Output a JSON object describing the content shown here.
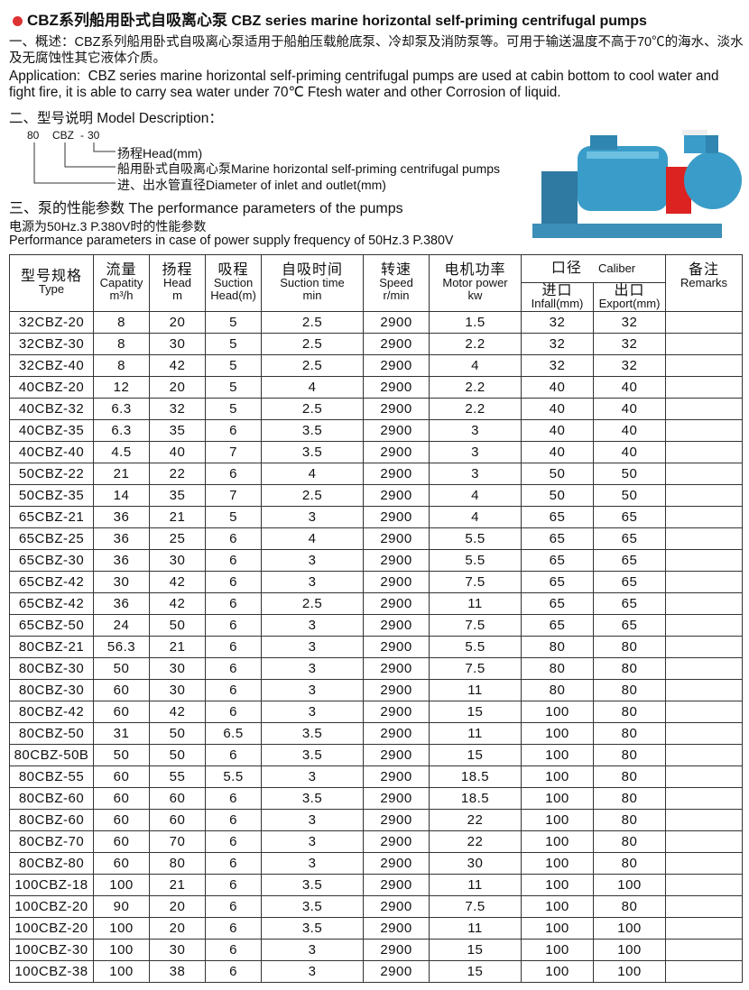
{
  "header": {
    "title_cn": "CBZ系列船用卧式自吸离心泵",
    "title_en": "CBZ series marine horizontal self-priming centrifugal pumps"
  },
  "overview": {
    "heading": "一、概述：",
    "text": "CBZ系列船用卧式自吸离心泵适用于船舶压载舱底泵、冷却泵及消防泵等。可用于输送温度不高于70℃的海水、淡水及无腐蚀性其它液体介质。",
    "app_label": "Application:",
    "app_text": "CBZ series marine horizontal self-priming centrifugal pumps are used at cabin bottom to cool water and fight fire, it is able to carry sea water under 70℃ Ftesh water and other Corrosion of liquid."
  },
  "model": {
    "heading": "二、型号说明 Model Description：",
    "code": {
      "diameter": "80",
      "series": "CBZ",
      "dash": "-",
      "head": "30"
    },
    "labels": [
      "扬程Head(mm)",
      "船用卧式自吸离心泵Marine horizontal self-priming centrifugal pumps",
      "进、出水管直径Diameter of inlet and outlet(mm)"
    ]
  },
  "performance": {
    "heading": "三、泵的性能参数 The performance parameters of the pumps",
    "note_cn": "电源为50Hz.3 P.380V时的性能参数",
    "note_en": "Performance parameters in case of power supply frequency of 50Hz.3 P.380V"
  },
  "table": {
    "headers": {
      "type": [
        "型号规格",
        "Type"
      ],
      "capacity": [
        "流量",
        "Capatity",
        "m³/h"
      ],
      "head": [
        "扬程",
        "Head",
        "m"
      ],
      "suction": [
        "吸程",
        "Suction",
        "Head(m)"
      ],
      "suction_time": [
        "自吸时间",
        "Suction time",
        "min"
      ],
      "speed": [
        "转速",
        "Speed",
        "r/min"
      ],
      "motor": [
        "电机功率",
        "Motor power",
        "kw"
      ],
      "caliber": [
        "口径",
        "Caliber"
      ],
      "infall": [
        "进口",
        "Infall(mm)"
      ],
      "export": [
        "出口",
        "Export(mm)"
      ],
      "remarks": [
        "备注",
        "Remarks"
      ]
    },
    "rows": [
      [
        "32CBZ-20",
        "8",
        "20",
        "5",
        "2.5",
        "2900",
        "1.5",
        "32",
        "32"
      ],
      [
        "32CBZ-30",
        "8",
        "30",
        "5",
        "2.5",
        "2900",
        "2.2",
        "32",
        "32"
      ],
      [
        "32CBZ-40",
        "8",
        "42",
        "5",
        "2.5",
        "2900",
        "4",
        "32",
        "32"
      ],
      [
        "40CBZ-20",
        "12",
        "20",
        "5",
        "4",
        "2900",
        "2.2",
        "40",
        "40"
      ],
      [
        "40CBZ-32",
        "6.3",
        "32",
        "5",
        "2.5",
        "2900",
        "2.2",
        "40",
        "40"
      ],
      [
        "40CBZ-35",
        "6.3",
        "35",
        "6",
        "3.5",
        "2900",
        "3",
        "40",
        "40"
      ],
      [
        "40CBZ-40",
        "4.5",
        "40",
        "7",
        "3.5",
        "2900",
        "3",
        "40",
        "40"
      ],
      [
        "50CBZ-22",
        "21",
        "22",
        "6",
        "4",
        "2900",
        "3",
        "50",
        "50"
      ],
      [
        "50CBZ-35",
        "14",
        "35",
        "7",
        "2.5",
        "2900",
        "4",
        "50",
        "50"
      ],
      [
        "65CBZ-21",
        "36",
        "21",
        "5",
        "3",
        "2900",
        "4",
        "65",
        "65"
      ],
      [
        "65CBZ-25",
        "36",
        "25",
        "6",
        "4",
        "2900",
        "5.5",
        "65",
        "65"
      ],
      [
        "65CBZ-30",
        "36",
        "30",
        "6",
        "3",
        "2900",
        "5.5",
        "65",
        "65"
      ],
      [
        "65CBZ-42",
        "30",
        "42",
        "6",
        "3",
        "2900",
        "7.5",
        "65",
        "65"
      ],
      [
        "65CBZ-42",
        "36",
        "42",
        "6",
        "2.5",
        "2900",
        "11",
        "65",
        "65"
      ],
      [
        "65CBZ-50",
        "24",
        "50",
        "6",
        "3",
        "2900",
        "7.5",
        "65",
        "65"
      ],
      [
        "80CBZ-21",
        "56.3",
        "21",
        "6",
        "3",
        "2900",
        "5.5",
        "80",
        "80"
      ],
      [
        "80CBZ-30",
        "50",
        "30",
        "6",
        "3",
        "2900",
        "7.5",
        "80",
        "80"
      ],
      [
        "80CBZ-30",
        "60",
        "30",
        "6",
        "3",
        "2900",
        "11",
        "80",
        "80"
      ],
      [
        "80CBZ-42",
        "60",
        "42",
        "6",
        "3",
        "2900",
        "15",
        "100",
        "80"
      ],
      [
        "80CBZ-50",
        "31",
        "50",
        "6.5",
        "3.5",
        "2900",
        "11",
        "100",
        "80"
      ],
      [
        "80CBZ-50B",
        "50",
        "50",
        "6",
        "3.5",
        "2900",
        "15",
        "100",
        "80"
      ],
      [
        "80CBZ-55",
        "60",
        "55",
        "5.5",
        "3",
        "2900",
        "18.5",
        "100",
        "80"
      ],
      [
        "80CBZ-60",
        "60",
        "60",
        "6",
        "3.5",
        "2900",
        "18.5",
        "100",
        "80"
      ],
      [
        "80CBZ-60",
        "60",
        "60",
        "6",
        "3",
        "2900",
        "22",
        "100",
        "80"
      ],
      [
        "80CBZ-70",
        "60",
        "70",
        "6",
        "3",
        "2900",
        "22",
        "100",
        "80"
      ],
      [
        "80CBZ-80",
        "60",
        "80",
        "6",
        "3",
        "2900",
        "30",
        "100",
        "80"
      ],
      [
        "100CBZ-18",
        "100",
        "21",
        "6",
        "3.5",
        "2900",
        "11",
        "100",
        "100"
      ],
      [
        "100CBZ-20",
        "90",
        "20",
        "6",
        "3.5",
        "2900",
        "7.5",
        "100",
        "80"
      ],
      [
        "100CBZ-20",
        "100",
        "20",
        "6",
        "3.5",
        "2900",
        "11",
        "100",
        "100"
      ],
      [
        "100CBZ-30",
        "100",
        "30",
        "6",
        "3",
        "2900",
        "15",
        "100",
        "100"
      ],
      [
        "100CBZ-38",
        "100",
        "38",
        "6",
        "3",
        "2900",
        "15",
        "100",
        "100"
      ]
    ]
  }
}
